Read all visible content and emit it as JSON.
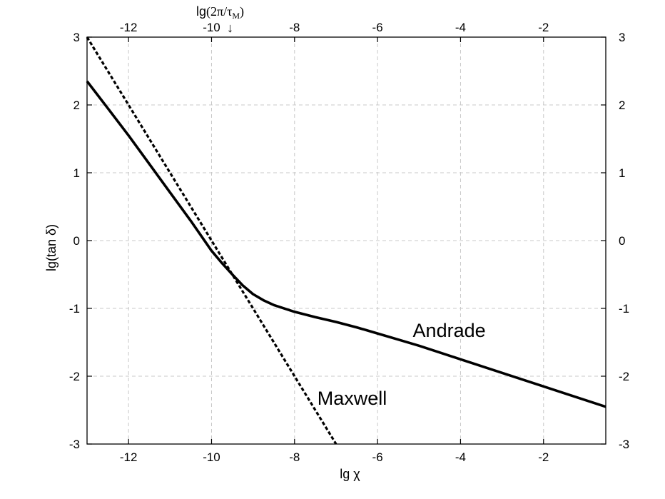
{
  "chart_data": {
    "type": "line",
    "xlabel": "lg χ",
    "ylabel": "lg(tan δ)",
    "xlim": [
      -13,
      -0.5
    ],
    "ylim": [
      -3,
      3
    ],
    "x_ticks": [
      -12,
      -10,
      -8,
      -6,
      -4,
      -2
    ],
    "y_ticks": [
      3,
      2,
      1,
      0,
      -1,
      -2,
      -3
    ],
    "grid": true,
    "top_axis": {
      "label_prefix": "lg",
      "label_math": "(2π/τ",
      "label_sub": "M",
      "label_close": ")",
      "ticks": [
        -12,
        -10,
        -8,
        -6,
        -4,
        -2
      ],
      "marker_x": -9.5,
      "marker_glyph": "↓"
    },
    "series": [
      {
        "name": "Andrade",
        "style": "solid",
        "color": "#000000",
        "x": [
          -13,
          -12.5,
          -12,
          -11.5,
          -11,
          -10.5,
          -10,
          -9.75,
          -9.5,
          -9.25,
          -9,
          -8.75,
          -8.5,
          -8,
          -7.5,
          -7,
          -6.5,
          -6,
          -5.5,
          -5,
          -4.5,
          -4,
          -3.5,
          -3,
          -2.5,
          -2,
          -1.5,
          -1,
          -0.5
        ],
        "y": [
          2.35,
          1.95,
          1.55,
          1.13,
          0.71,
          0.29,
          -0.15,
          -0.33,
          -0.5,
          -0.66,
          -0.79,
          -0.88,
          -0.95,
          -1.05,
          -1.13,
          -1.2,
          -1.28,
          -1.37,
          -1.46,
          -1.55,
          -1.65,
          -1.75,
          -1.85,
          -1.95,
          -2.05,
          -2.15,
          -2.25,
          -2.35,
          -2.45
        ]
      },
      {
        "name": "Maxwell",
        "style": "dashed",
        "color": "#000000",
        "x": [
          -13,
          -7
        ],
        "y": [
          3,
          -3
        ]
      }
    ],
    "annotations": [
      {
        "text": "Andrade",
        "x": -5.15,
        "y": -1.42
      },
      {
        "text": "Maxwell",
        "x": -7.45,
        "y": -2.42
      }
    ]
  }
}
